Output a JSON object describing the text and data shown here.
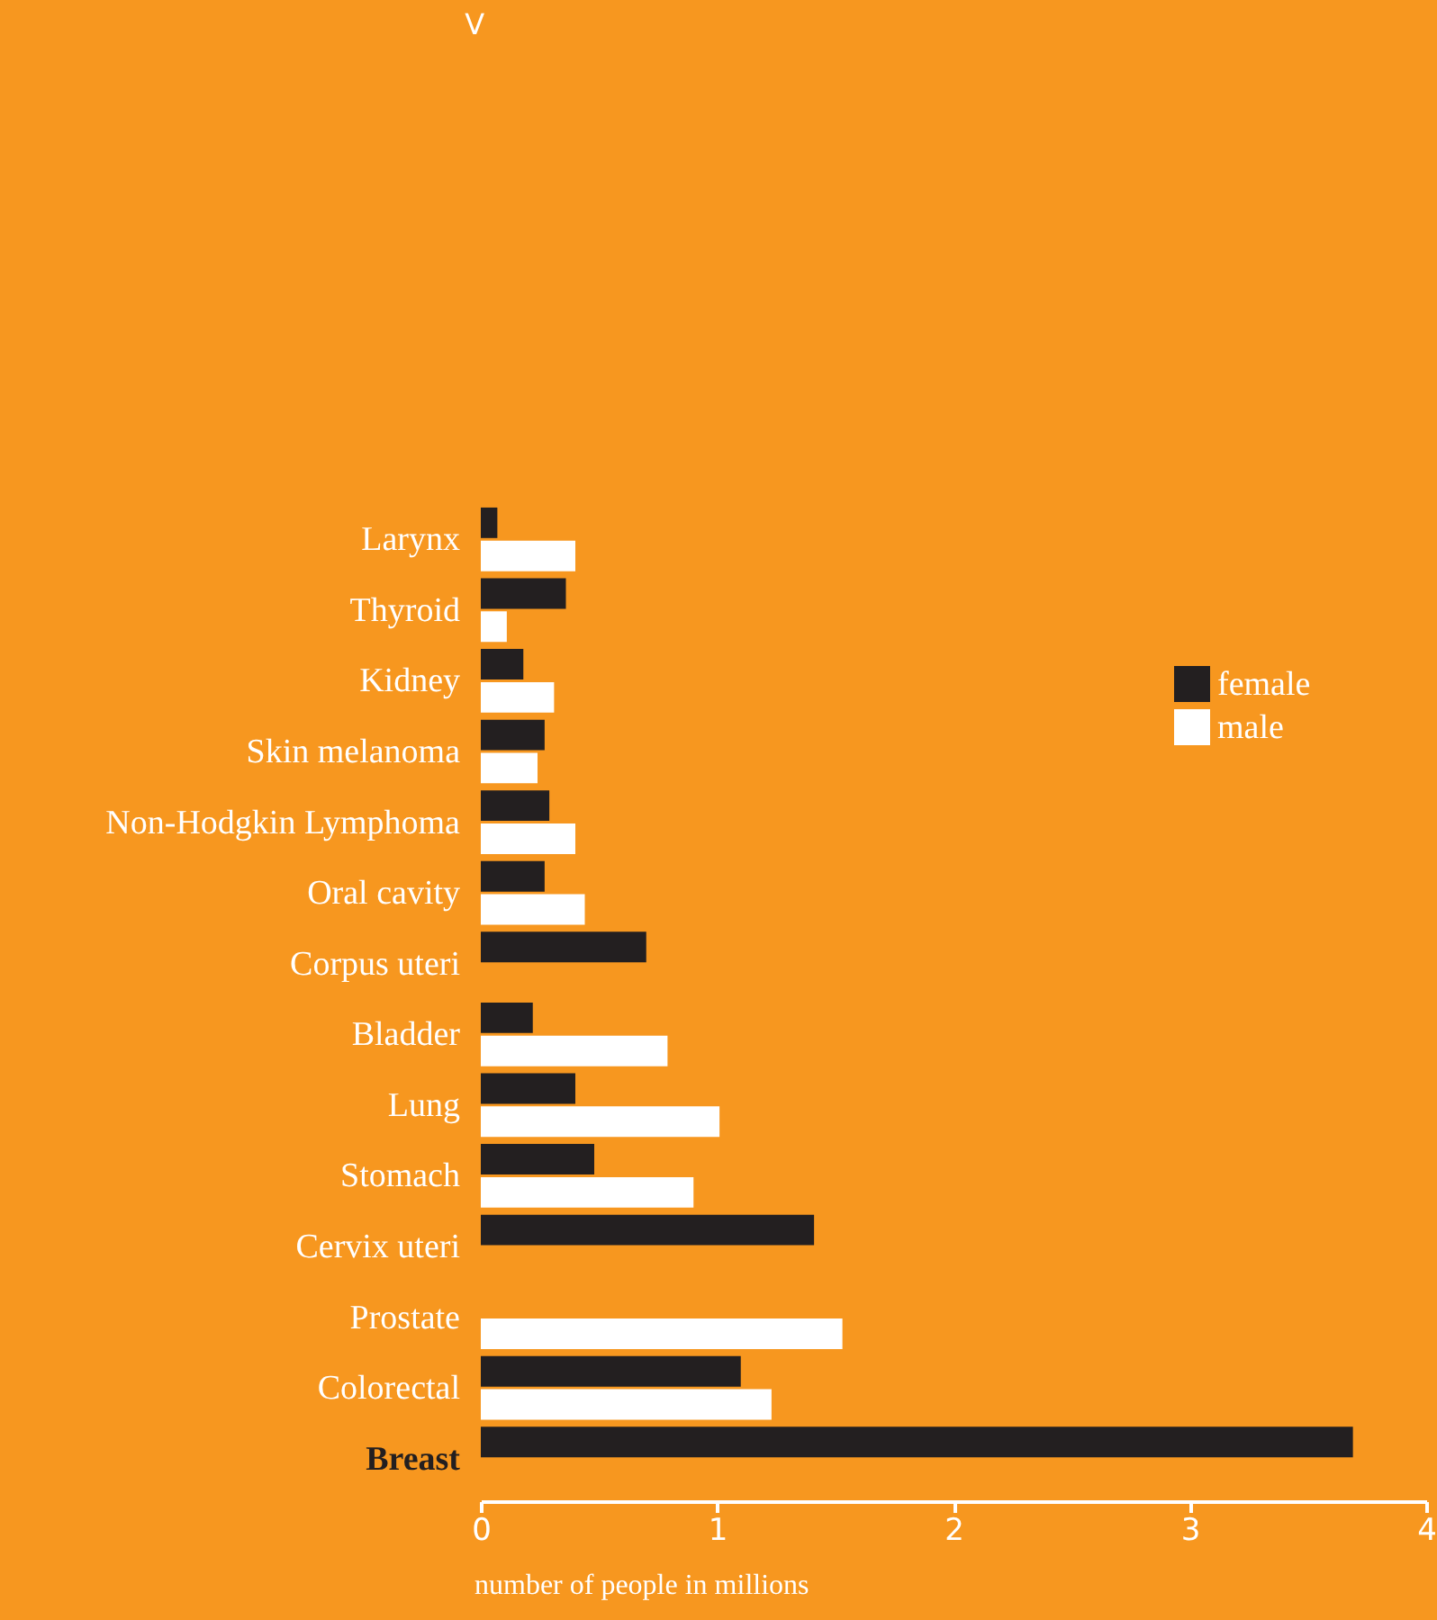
{
  "chart_data": {
    "type": "bar",
    "orientation": "horizontal",
    "title": "V",
    "categories": [
      "Larynx",
      "Thyroid",
      "Kidney",
      "Skin melanoma",
      "Non-Hodgkin Lymphoma",
      "Oral cavity",
      "Corpus uteri",
      "Bladder",
      "Lung",
      "Stomach",
      "Cervix uteri",
      "Prostate",
      "Colorectal",
      "Breast"
    ],
    "series": [
      {
        "name": "female",
        "color": "#231f20",
        "values": [
          0.07,
          0.36,
          0.18,
          0.27,
          0.29,
          0.27,
          0.7,
          0.22,
          0.4,
          0.48,
          1.41,
          null,
          1.1,
          3.69
        ]
      },
      {
        "name": "male",
        "color": "#ffffff",
        "values": [
          0.4,
          0.11,
          0.31,
          0.24,
          0.4,
          0.44,
          null,
          0.79,
          1.01,
          0.9,
          null,
          1.53,
          1.23,
          null
        ]
      }
    ],
    "xlabel": "number of people in millions",
    "xlim": [
      0,
      4
    ],
    "xticks": [
      0,
      1,
      2,
      3,
      4
    ],
    "grid": false,
    "legend": "right"
  }
}
